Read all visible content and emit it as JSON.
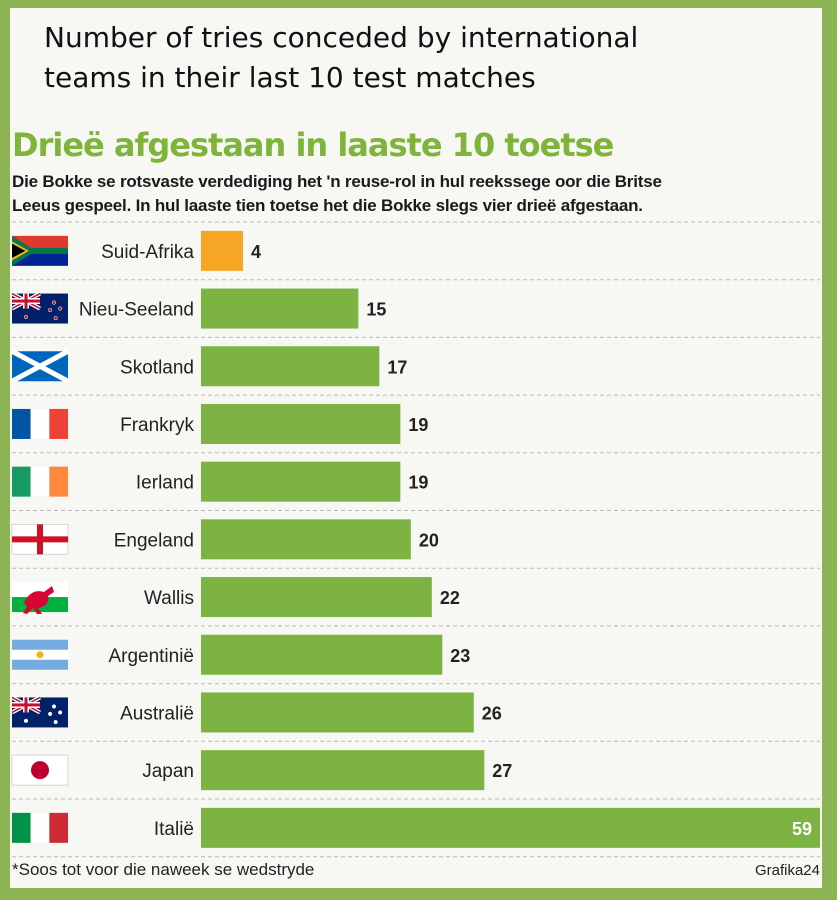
{
  "title_english": "Number of tries conceded by international\nteams in their last 10 test matches",
  "headline": "Drieë afgestaan in laaste 10 toetse",
  "subtitle": "Die Bokke se rotsvaste verdediging het 'n reuse-rol in hul reekssege oor die Britse\nLeeus gespeel. In hul laaste tien toetse het die Bokke slegs vier drieë afgestaan.",
  "footnote": "*Soos tot voor die naweek se wedstryde",
  "credit": "Grafika24",
  "colors": {
    "highlight": "#f6a524",
    "bar": "#7cb342",
    "accent": "#7fb43a",
    "border": "#8cb454"
  },
  "chart_data": {
    "type": "bar",
    "orientation": "horizontal",
    "categories": [
      "Suid-Afrika",
      "Nieu-Seeland",
      "Skotland",
      "Frankryk",
      "Ierland",
      "Engeland",
      "Wallis",
      "Argentinië",
      "Australië",
      "Japan",
      "Italië"
    ],
    "values": [
      4,
      15,
      17,
      19,
      19,
      20,
      22,
      23,
      26,
      27,
      59
    ],
    "flags": [
      "south-africa-flag",
      "new-zealand-flag",
      "scotland-flag",
      "france-flag",
      "ireland-flag",
      "england-flag",
      "wales-flag",
      "argentina-flag",
      "australia-flag",
      "japan-flag",
      "italy-flag"
    ],
    "highlight_category": "Suid-Afrika",
    "xlim": [
      0,
      59
    ],
    "grid": "dashed row separators"
  }
}
